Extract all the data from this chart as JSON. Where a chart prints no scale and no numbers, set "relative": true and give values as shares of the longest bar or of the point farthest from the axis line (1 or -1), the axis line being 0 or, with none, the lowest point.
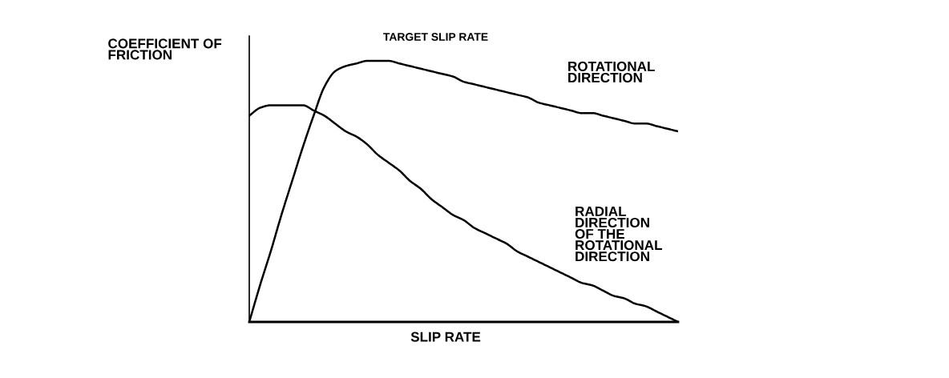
{
  "chart_data": {
    "type": "line",
    "title": "TARGET SLIP RATE",
    "xlabel": "SLIP RATE",
    "ylabel": "COEFFICIENT OF\nFRICTION",
    "relative": true,
    "legend": false,
    "categories": [
      null,
      null,
      null,
      null,
      null,
      null,
      null,
      null,
      null,
      null,
      null,
      null,
      null,
      null,
      null,
      null,
      null,
      null,
      null,
      null,
      null,
      null,
      null,
      null,
      null,
      null,
      null,
      null,
      null,
      null,
      null,
      null,
      null,
      null,
      null,
      null,
      null,
      null,
      null,
      null,
      null
    ],
    "series": [
      {
        "name": "ROTATIONAL\nDIRECTION",
        "color": "#000000",
        "values": [
          0,
          0.14,
          0.27,
          0.41,
          0.54,
          0.67,
          0.79,
          0.9,
          0.96,
          0.98,
          0.99,
          1.0,
          1.0,
          1.0,
          0.99,
          0.98,
          0.97,
          0.96,
          0.95,
          0.94,
          0.92,
          0.91,
          0.9,
          0.89,
          0.88,
          0.87,
          0.86,
          0.84,
          0.83,
          0.82,
          0.81,
          0.8,
          0.8,
          0.79,
          0.78,
          0.77,
          0.76,
          0.76,
          0.75,
          0.74,
          0.73
        ]
      },
      {
        "name": "RADIAL\nDIRECTION\nOF THE\nROTATIONAL\nDIRECTION",
        "color": "#000000",
        "values": [
          0.79,
          0.82,
          0.83,
          0.83,
          0.83,
          0.83,
          0.81,
          0.79,
          0.76,
          0.73,
          0.71,
          0.68,
          0.64,
          0.61,
          0.58,
          0.54,
          0.51,
          0.47,
          0.44,
          0.41,
          0.39,
          0.36,
          0.34,
          0.32,
          0.3,
          0.27,
          0.25,
          0.23,
          0.21,
          0.19,
          0.17,
          0.15,
          0.14,
          0.12,
          0.1,
          0.09,
          0.07,
          0.06,
          0.04,
          0.02,
          0
        ]
      }
    ]
  }
}
